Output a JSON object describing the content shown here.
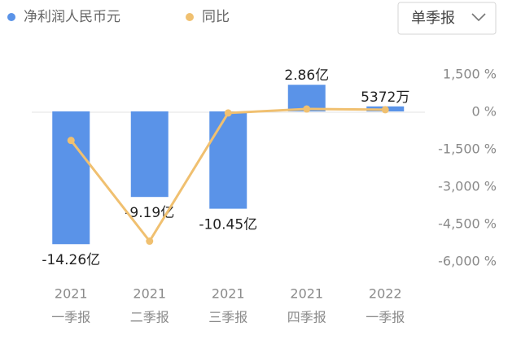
{
  "controls": {
    "period": "单季报"
  },
  "chart_data": {
    "type": "bar_line",
    "categories": [
      [
        "2021",
        "一季报"
      ],
      [
        "2021",
        "二季报"
      ],
      [
        "2021",
        "三季报"
      ],
      [
        "2021",
        "四季报"
      ],
      [
        "2022",
        "一季报"
      ]
    ],
    "series": [
      {
        "name": "净利润人民币元",
        "color": "#5a93e8",
        "type": "bar",
        "values": [
          -1426000000,
          -919000000,
          -1045000000,
          286000000,
          53720000
        ],
        "value_labels": [
          "-14.26亿",
          "-9.19亿",
          "-10.45亿",
          "2.86亿",
          "5372万"
        ]
      },
      {
        "name": "同比",
        "color": "#f0c070",
        "type": "line",
        "axis": "y2",
        "values": [
          -1130,
          -5170,
          -30,
          130,
          100
        ]
      }
    ],
    "ylim": [
      -1616000000,
      393000000
    ],
    "y2lim": [
      -6000,
      1500
    ],
    "y2ticks": [
      {
        "value": 1500,
        "label": "1,500 %"
      },
      {
        "value": 0,
        "label": "0 %"
      },
      {
        "value": -1500,
        "label": "-1,500 %"
      },
      {
        "value": -3000,
        "label": "-3,000 %"
      },
      {
        "value": -4500,
        "label": "-4,500 %"
      },
      {
        "value": -6000,
        "label": "-6,000 %"
      }
    ],
    "legend": "top-left"
  }
}
